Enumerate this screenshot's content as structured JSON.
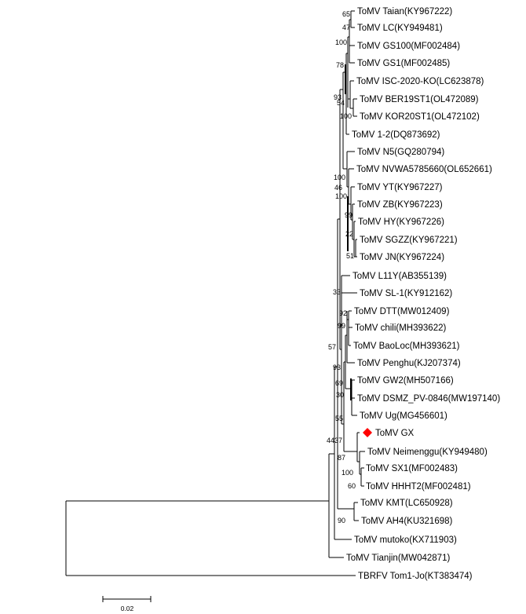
{
  "leaves": [
    "ToMV Taian(KY967222)",
    "ToMV LC(KY949481)",
    "ToMV GS100(MF002484)",
    "ToMV GS1(MF002485)",
    "ToMV ISC-2020-KO(LC623878)",
    "ToMV BER19ST1(OL472089)",
    "ToMV KOR20ST1(OL472102)",
    "ToMV 1-2(DQ873692)",
    "ToMV N5(GQ280794)",
    "ToMV NVWA5785660(OL652661)",
    "ToMV YT(KY967227)",
    "ToMV ZB(KY967223)",
    "ToMV HY(KY967226)",
    "ToMV SGZZ(KY967221)",
    "ToMV JN(KY967224)",
    "ToMV L11Y(AB355139)",
    "ToMV SL-1(KY912162)",
    "ToMV DTT(MW012409)",
    "ToMV chili(MH393622)",
    "ToMV BaoLoc(MH393621)",
    "ToMV Penghu(KJ207374)",
    "ToMV GW2(MH507166)",
    "ToMV DSMZ_PV-0846(MW197140)",
    "ToMV Ug(MG456601)",
    "ToMV GX",
    "ToMV Neimenggu(KY949480)",
    "ToMV SX1(MF002483)",
    "ToMV HHHT2(MF002481)",
    "ToMV KMT(LC650928)",
    "ToMV AH4(KU321698)",
    "ToMV mutoko(KX711903)",
    "ToMV Tianjin(MW042871)",
    "TBRFV Tom1-Jo(KT383474)"
  ],
  "bootstrap": {
    "b65": "65",
    "b47": "47",
    "b100a": "100",
    "b78": "78",
    "b93a": "93",
    "b54": "54",
    "b100b": "100",
    "b100c": "100",
    "b46": "46",
    "b100d": "100",
    "b99a": "99",
    "b22": "22",
    "b51": "51",
    "b33": "33",
    "b92": "92",
    "b99b": "99",
    "b57": "57",
    "b93b": "93",
    "b69": "69",
    "b30": "30",
    "b55": "55",
    "b37": "37",
    "b44": "44",
    "b87": "87",
    "b100e": "100",
    "b60": "60",
    "b90": "90"
  },
  "scale_bar": {
    "label": "0.02",
    "value": 0.02
  },
  "colors": {
    "line": "#000000",
    "highlight_marker": "#ff0000"
  },
  "highlight": {
    "leaf": "ToMV GX",
    "marker_shape": "red-diamond"
  }
}
